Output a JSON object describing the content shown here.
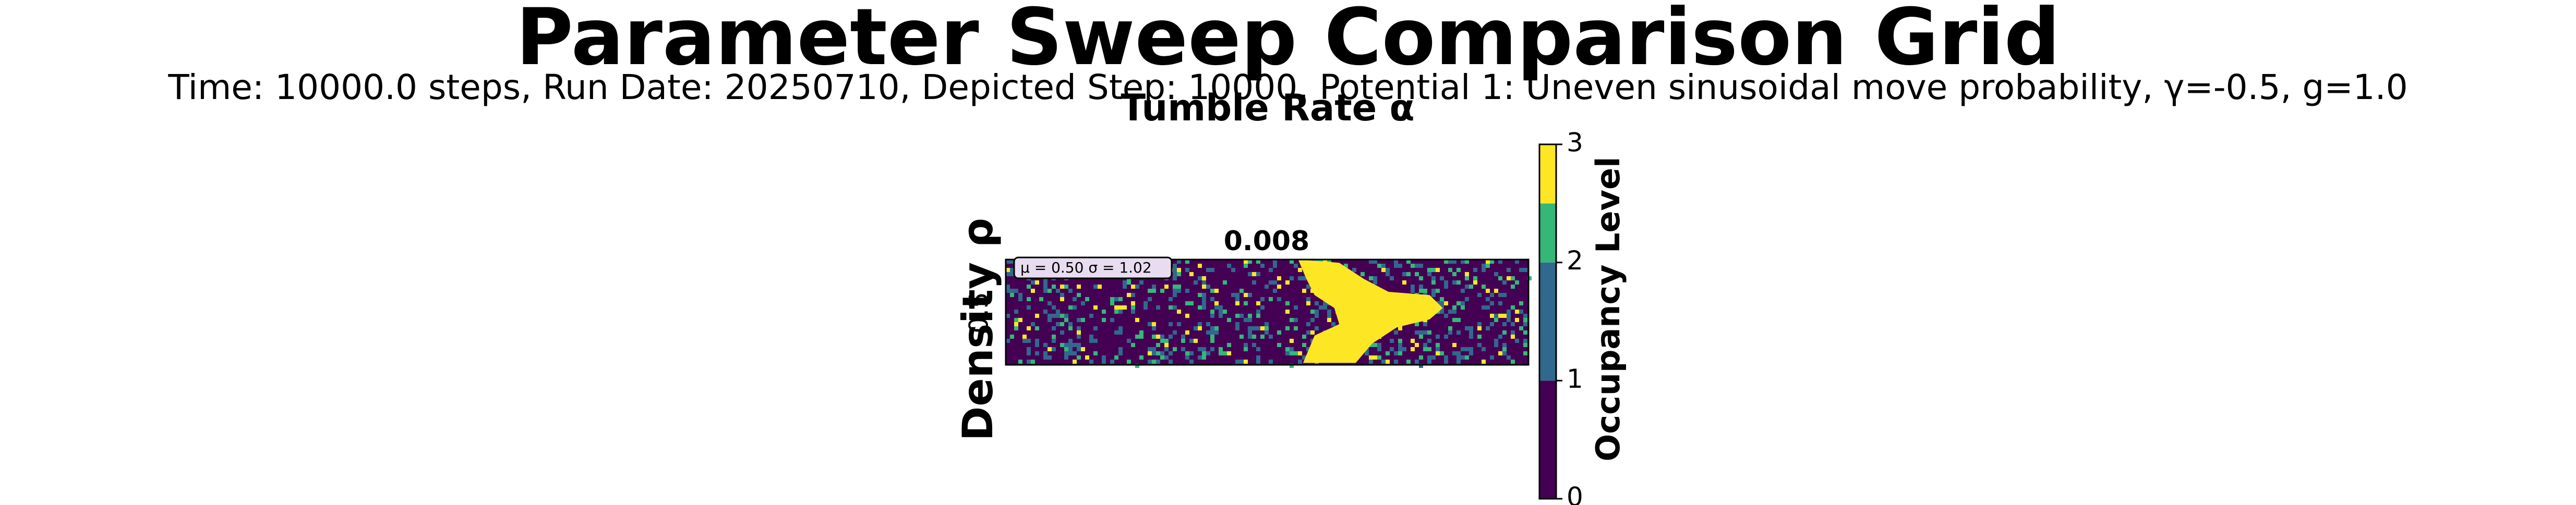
{
  "chart_data": {
    "type": "heatmap",
    "title": "Parameter Sweep Comparison Grid",
    "subtitle": "Time: 10000.0 steps, Run Date: 20250710, Depicted Step: 10000, Potential 1: Uneven sinusoidal move probability, γ=-0.5, g=1.0",
    "x_label": "Tumble Rate α",
    "y_label": "Density ρ",
    "column_labels": [
      "0.008"
    ],
    "row_labels": [
      "0.5"
    ],
    "annotation": "μ = 0.50  σ = 1.02",
    "colorbar": {
      "label": "Occupancy Level",
      "lim": [
        0,
        3
      ],
      "ticks": [
        0,
        1,
        2,
        3
      ],
      "boundaries": [
        0,
        1,
        2,
        2.5,
        3
      ],
      "colors": [
        "#440154",
        "#31688e",
        "#35b779",
        "#fde725"
      ]
    }
  }
}
